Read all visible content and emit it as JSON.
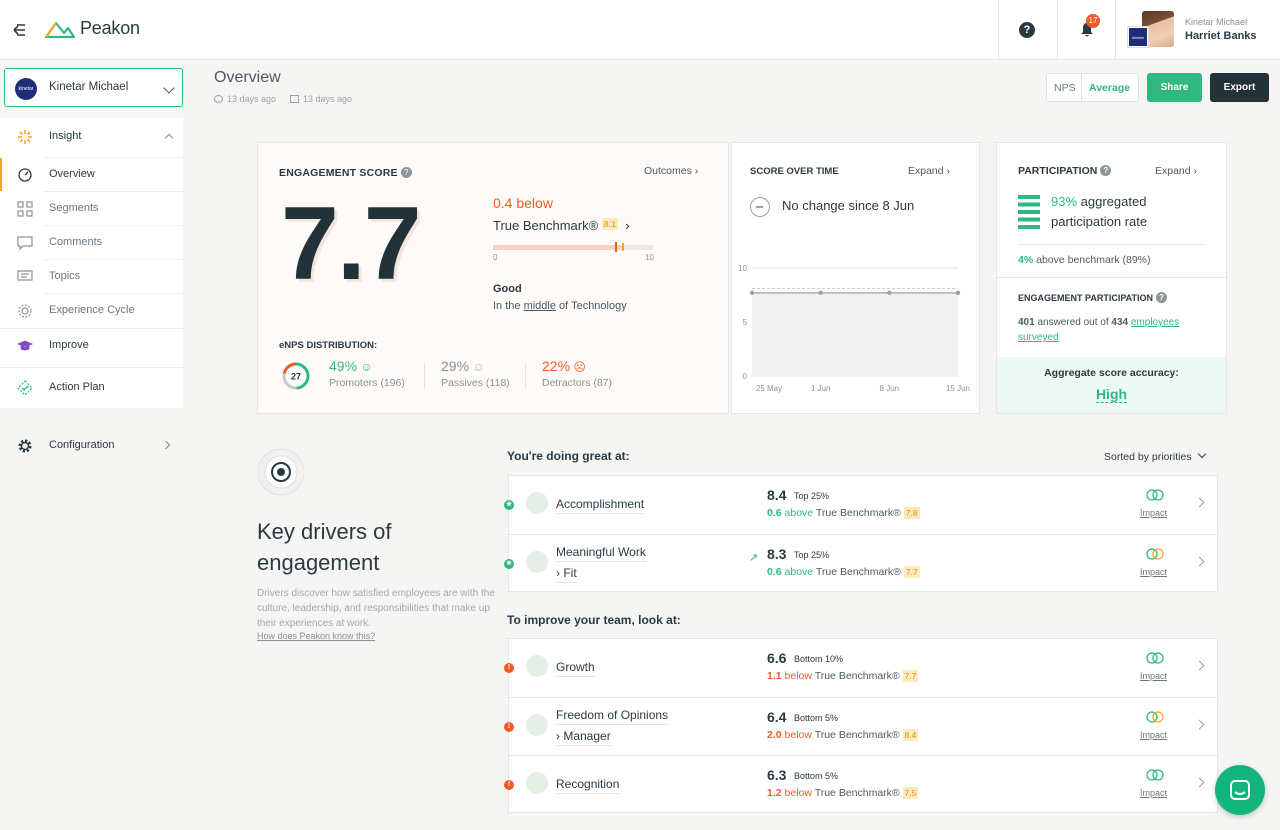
{
  "topbar": {
    "brand": "Peakon",
    "help": "?",
    "notifications": "17",
    "user_company": "Kinetar Michael",
    "user_name": "Harriet Banks",
    "company_logo_text": "kinetar"
  },
  "sidebar": {
    "company": "Kinetar Michael",
    "items": [
      {
        "label": "Insight",
        "icon": "insight-icon"
      },
      {
        "label": "Overview",
        "icon": "overview-icon"
      },
      {
        "label": "Segments",
        "icon": "segments-icon"
      },
      {
        "label": "Comments",
        "icon": "comments-icon"
      },
      {
        "label": "Topics",
        "icon": "topics-icon"
      },
      {
        "label": "Experience Cycle",
        "icon": "experience-cycle-icon"
      },
      {
        "label": "Improve",
        "icon": "improve-icon"
      },
      {
        "label": "Action Plan",
        "icon": "action-plan-icon"
      },
      {
        "label": "Configuration",
        "icon": "gear-icon"
      }
    ]
  },
  "header": {
    "title": "Overview",
    "meta1": "13 days ago",
    "meta2": "13 days ago",
    "toggle_nps": "NPS",
    "toggle_avg": "Average",
    "share": "Share",
    "export": "Export"
  },
  "engagement": {
    "title": "ENGAGEMENT SCORE",
    "outcomes": "Outcomes",
    "score": "7.7",
    "below": "0.4 below",
    "benchmark_label": "True Benchmark®",
    "benchmark_value": "8.1",
    "bar_min": "0",
    "bar_max": "10",
    "bar_score": 7.7,
    "bar_benchmark": 8.1,
    "rating": "Good",
    "position_pre": "In the ",
    "position_word": "middle",
    "position_post": " of Technology",
    "enps_title": "eNPS DISTRIBUTION:",
    "enps_score": "27",
    "promoters_pct": "49%",
    "promoters_label": "Promoters (196)",
    "passives_pct": "29%",
    "passives_label": "Passives (118)",
    "detractors_pct": "22%",
    "detractors_label": "Detractors (87)",
    "promoters_value": 49,
    "passives_value": 29,
    "detractors_value": 22
  },
  "score_over_time": {
    "title": "SCORE OVER TIME",
    "expand": "Expand",
    "summary": "No change since 8 Jun"
  },
  "chart_data": {
    "type": "line",
    "x": [
      "25 May",
      "1 Jun",
      "8 Jun",
      "15 Jun"
    ],
    "series": [
      {
        "values": [
          7.7,
          7.7,
          7.7,
          7.7
        ]
      }
    ],
    "benchmark": 8.1,
    "ylim": [
      0,
      10
    ],
    "yticks": [
      "0",
      "5",
      "10"
    ]
  },
  "participation": {
    "title": "PARTICIPATION",
    "expand": "Expand",
    "rate_pct": "93%",
    "rate_text": " aggregated participation rate",
    "bench_pct": "4%",
    "bench_text": " above benchmark (89%)",
    "ep_title": "ENGAGEMENT PARTICIPATION",
    "answered": "401",
    "ep_mid": " answered out of ",
    "total": "434",
    "ep_link": "employees surveyed",
    "accuracy_label": "Aggregate score accuracy:",
    "accuracy_value": "High"
  },
  "key_drivers": {
    "title": "Key drivers of engagement",
    "description": "Drivers discover how satisfied employees are with the culture, leadership, and responsibilities that make up their experiences at work.",
    "link": "How does Peakon know this?",
    "great_title": "You're doing great at:",
    "sort": "Sorted by priorities",
    "improve_title": "To improve your team, look at:",
    "impact_label": "Impact",
    "benchmark_text": " True Benchmark®",
    "great": [
      {
        "name": "Accomplishment",
        "sub": "",
        "score": "8.4",
        "rank": "Top 25%",
        "diff": "0.6",
        "dir": "above",
        "bench": "7.8",
        "icon": "accomplishment-icon"
      },
      {
        "name": "Meaningful Work",
        "sub": "› Fit",
        "score": "8.3",
        "rank": "Top 25%",
        "diff": "0.6",
        "dir": "above",
        "bench": "7.7",
        "icon": "meaningful-work-icon",
        "trend": "↗"
      }
    ],
    "improve": [
      {
        "name": "Growth",
        "sub": "",
        "score": "6.6",
        "rank": "Bottom 10%",
        "diff": "1.1",
        "dir": "below",
        "bench": "7.7",
        "icon": "growth-icon"
      },
      {
        "name": "Freedom of Opinions",
        "sub": "› Manager",
        "score": "6.4",
        "rank": "Bottom 5%",
        "diff": "2.0",
        "dir": "below",
        "bench": "8.4",
        "icon": "freedom-of-opinions-icon"
      },
      {
        "name": "Recognition",
        "sub": "",
        "score": "6.3",
        "rank": "Bottom 5%",
        "diff": "1.2",
        "dir": "below",
        "bench": "7.5",
        "icon": "recognition-icon"
      }
    ]
  },
  "colors": {
    "accent": "#2fb981",
    "negative": "#f05a28",
    "dark": "#223238",
    "benchmark_tag": "#fde9b9"
  }
}
